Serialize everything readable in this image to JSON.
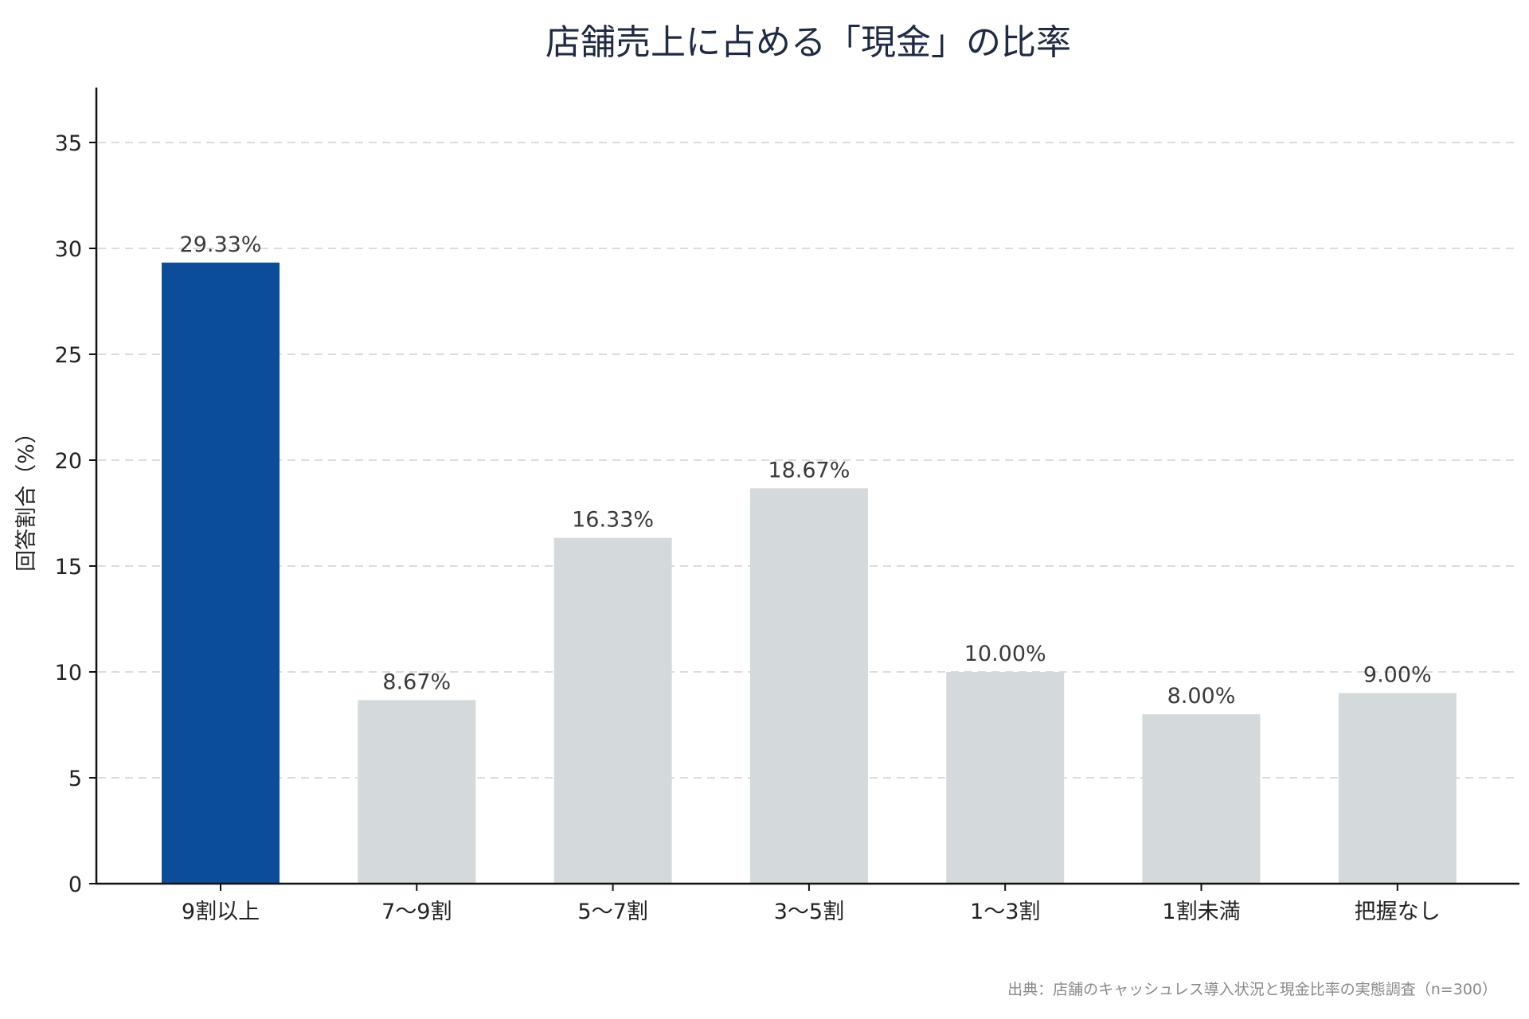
{
  "chart_data": {
    "type": "bar",
    "title": "店舗売上に占める「現金」の比率",
    "xlabel": "",
    "ylabel": "回答割合（%）",
    "categories": [
      "9割以上",
      "7〜9割",
      "5〜7割",
      "3〜5割",
      "1〜3割",
      "1割未満",
      "把握なし"
    ],
    "values": [
      29.33,
      8.67,
      16.33,
      18.67,
      10.0,
      8.0,
      9.0
    ],
    "data_labels": [
      "29.33%",
      "8.67%",
      "16.33%",
      "18.67%",
      "10.00%",
      "8.00%",
      "9.00%"
    ],
    "ylim": [
      0,
      37.5
    ],
    "yticks": [
      0,
      5,
      10,
      15,
      20,
      25,
      30,
      35
    ],
    "ytick_labels": [
      "0",
      "5",
      "10",
      "15",
      "20",
      "25",
      "30",
      "35"
    ],
    "grid": "horizontal dashed",
    "highlight_index": 0,
    "colors": {
      "highlight": "#0b4d98",
      "default": "#d4d9dc",
      "title": "#1f2a44",
      "axis": "#111111",
      "grid": "#dcdcdc",
      "note": "#8a8a8a"
    },
    "source_note": "出典：店舗のキャッシュレス導入状況と現金比率の実態調査（n=300）"
  }
}
